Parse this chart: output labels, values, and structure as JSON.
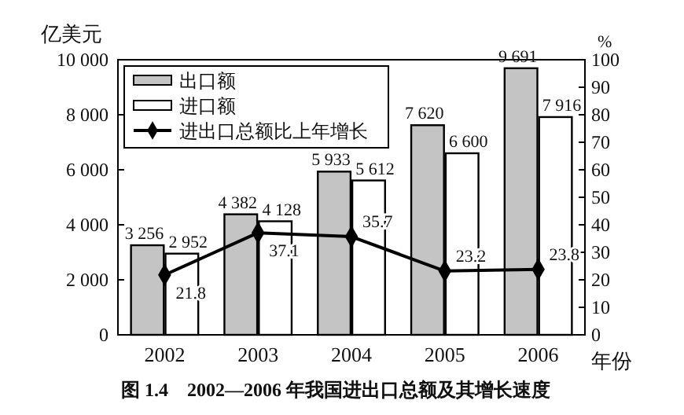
{
  "chart_data": {
    "type": "bar",
    "title": "图 1.4　2002—2006 年我国进出口总额及其增长速度",
    "ylabel": "亿美元",
    "y2label": "%",
    "xlabel": "年份",
    "categories": [
      "2002",
      "2003",
      "2004",
      "2005",
      "2006"
    ],
    "series": [
      {
        "name": "出口额",
        "color": "#c4c4c4",
        "values": [
          3256,
          4382,
          5933,
          7620,
          9691
        ],
        "value_labels": [
          "3 256",
          "4 382",
          "5 933",
          "7 620",
          "9 691"
        ]
      },
      {
        "name": "进口额",
        "color": "#ffffff",
        "values": [
          2952,
          4128,
          5612,
          6600,
          7916
        ],
        "value_labels": [
          "2 952",
          "4 128",
          "5 612",
          "6 600",
          "7 916"
        ]
      },
      {
        "name": "进出口总额比上年增长",
        "type": "line",
        "axis": "y2",
        "color": "#000000",
        "marker": "diamond",
        "values": [
          21.8,
          37.1,
          35.7,
          23.2,
          23.8
        ],
        "value_labels": [
          "21.8",
          "37.1",
          "35.7",
          "23.2",
          "23.8"
        ]
      }
    ],
    "ylim": [
      0,
      10000
    ],
    "yticks": [
      {
        "value": 0,
        "label": "0"
      },
      {
        "value": 2000,
        "label": "2 000"
      },
      {
        "value": 4000,
        "label": "4 000"
      },
      {
        "value": 6000,
        "label": "6 000"
      },
      {
        "value": 8000,
        "label": "8 000"
      },
      {
        "value": 10000,
        "label": "10 000"
      }
    ],
    "y2lim": [
      0,
      100
    ],
    "y2ticks": [
      0,
      10,
      20,
      30,
      40,
      50,
      60,
      70,
      80,
      90,
      100
    ],
    "legend": "top left",
    "grid": false
  }
}
